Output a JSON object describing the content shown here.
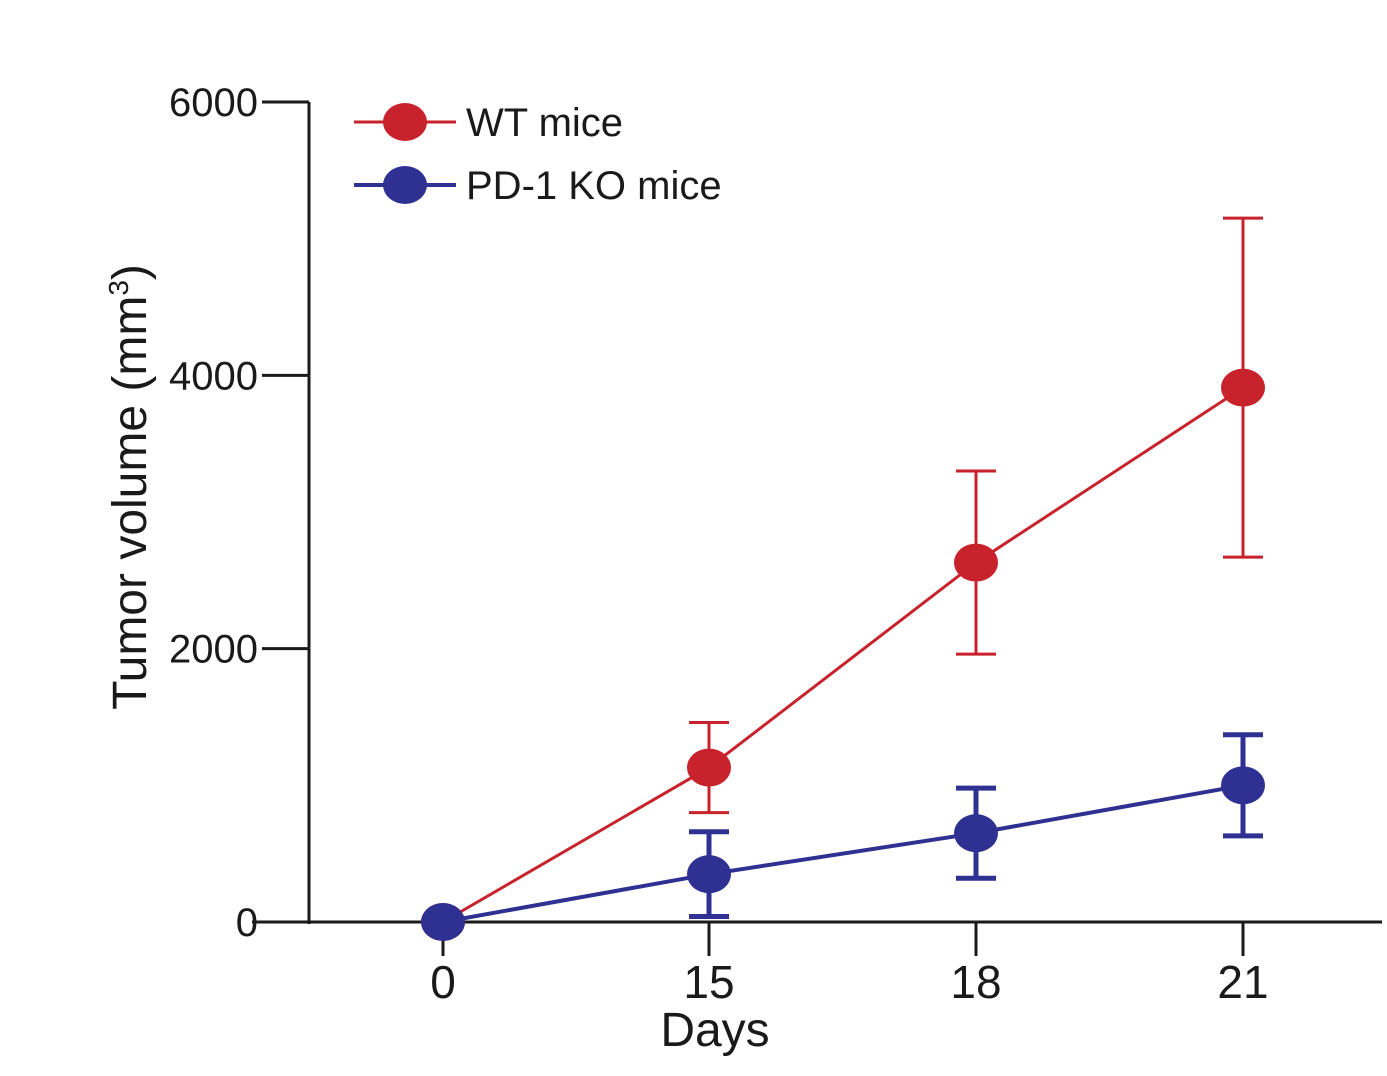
{
  "chart_data": {
    "type": "line",
    "title": "",
    "xlabel": "Days",
    "ylabel": "Tumor volume (mm",
    "ylabel_superscript": "3",
    "ylabel_close": ")",
    "x": [
      "0",
      "15",
      "18",
      "21"
    ],
    "ylim": [
      0,
      6000
    ],
    "yticks": [
      "0",
      "2000",
      "4000",
      "6000"
    ],
    "grid": false,
    "legend_position": "top-left",
    "series": [
      {
        "name": "WT mice",
        "color": "#c8232c",
        "values": [
          0,
          1130,
          2630,
          3910
        ],
        "error": [
          0,
          330,
          670,
          1240
        ]
      },
      {
        "name": "PD-1 KO mice",
        "color": "#2e3192",
        "values": [
          0,
          350,
          650,
          1000
        ],
        "error": [
          0,
          310,
          330,
          370
        ]
      }
    ]
  }
}
